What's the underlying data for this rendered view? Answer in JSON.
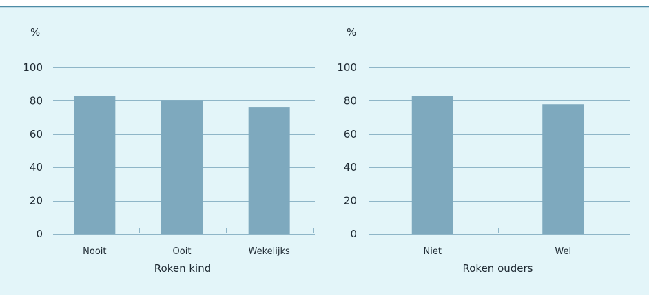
{
  "colors": {
    "panel_bg": "#e3f5f9",
    "top_rule": "#4e8ca6",
    "bar": "#7ea9be",
    "grid": "#8fb6c8",
    "text": "#1f2a33"
  },
  "chart_data": [
    {
      "type": "bar",
      "ylabel": "%",
      "xlabel": "Roken kind",
      "categories": [
        "Nooit",
        "Ooit",
        "Wekelijks"
      ],
      "values": [
        83,
        80,
        76
      ],
      "ylim": [
        0,
        100
      ],
      "yticks": [
        "0",
        "20",
        "40",
        "60",
        "80",
        "100"
      ],
      "grid": true
    },
    {
      "type": "bar",
      "ylabel": "%",
      "xlabel": "Roken ouders",
      "categories": [
        "Niet",
        "Wel"
      ],
      "values": [
        83,
        78
      ],
      "ylim": [
        0,
        100
      ],
      "yticks": [
        "0",
        "20",
        "40",
        "60",
        "80",
        "100"
      ],
      "grid": true
    }
  ]
}
